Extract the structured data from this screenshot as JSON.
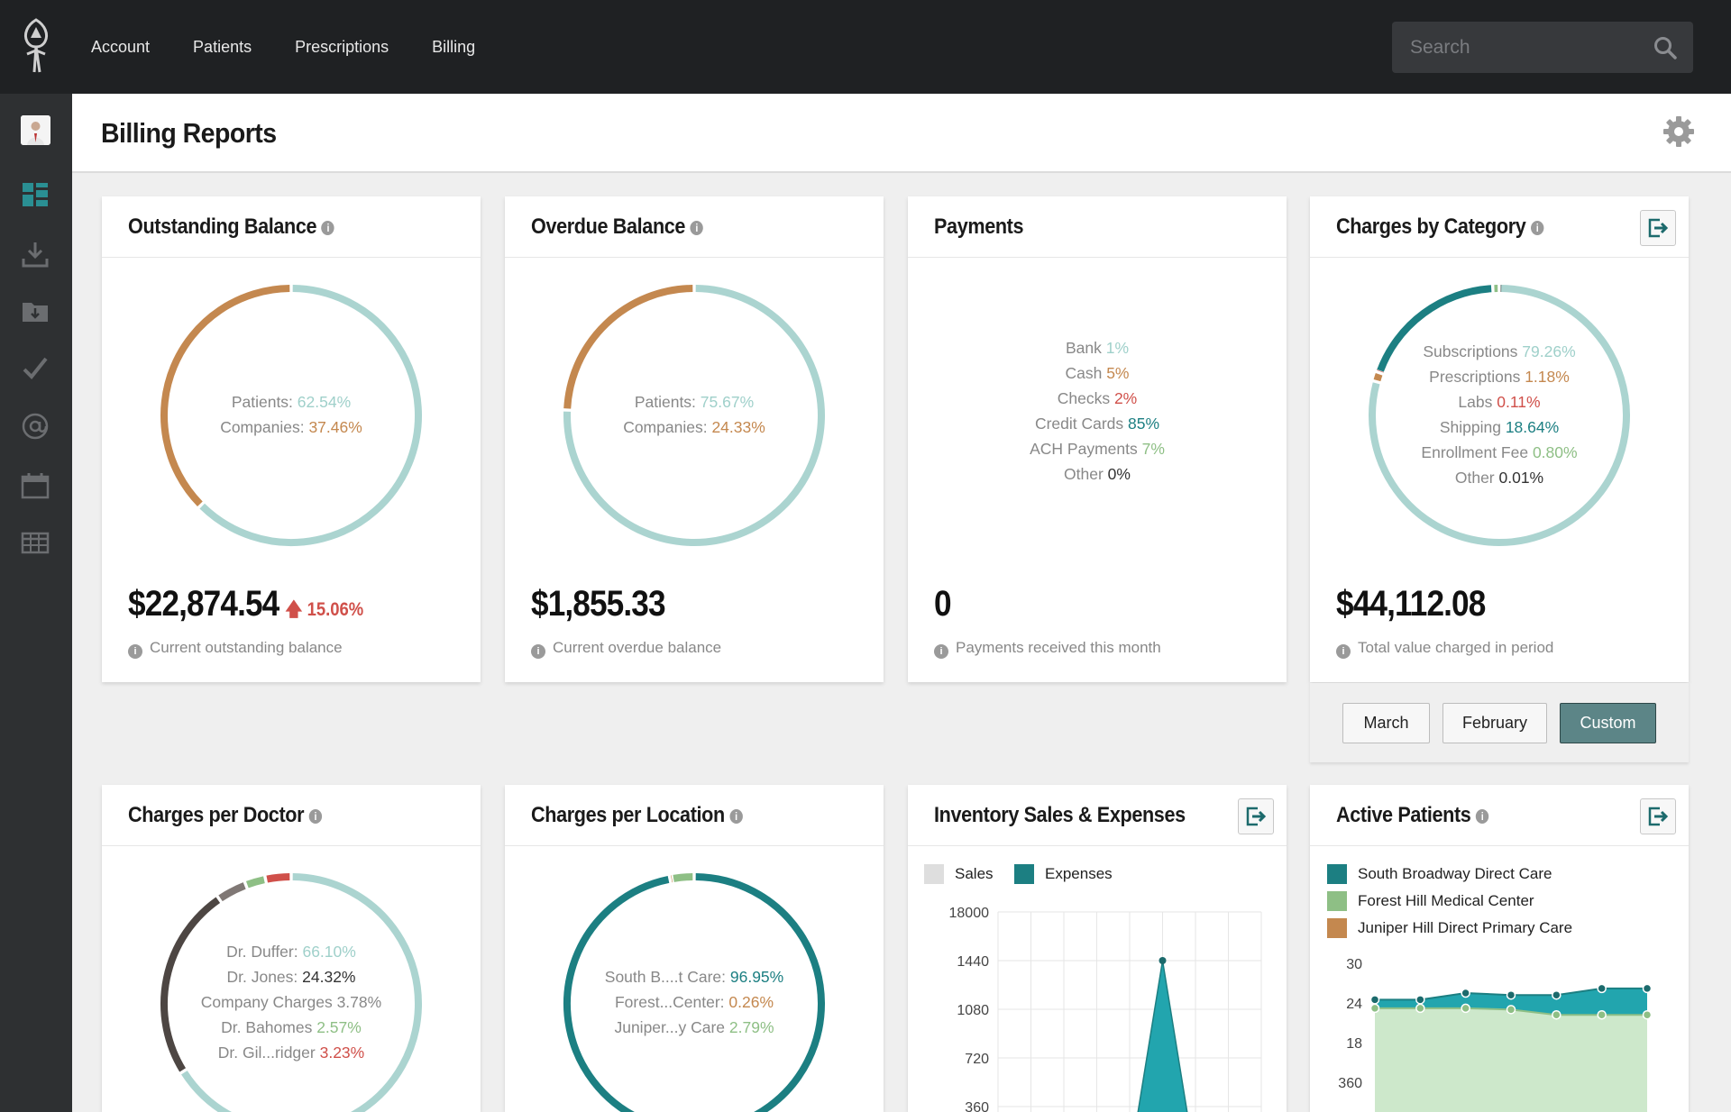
{
  "nav": [
    "Account",
    "Patients",
    "Prescriptions",
    "Billing"
  ],
  "search": {
    "placeholder": "Search"
  },
  "header": {
    "title": "Billing Reports"
  },
  "sidebar": {
    "icons": [
      "avatar",
      "dashboard-icon",
      "download-icon",
      "folder-download-icon",
      "check-icon",
      "at-icon",
      "calendar-icon",
      "table-icon"
    ]
  },
  "colors": {
    "teal": "#1c7f82",
    "light_teal": "#abd4d0",
    "orange": "#c4884f",
    "green": "#8ebf85",
    "red": "#d0504a",
    "dark": "#4d4643",
    "gray": "#807875"
  },
  "cards": {
    "outstanding": {
      "title": "Outstanding Balance",
      "legend": [
        {
          "label": "Patients: ",
          "value": "62.54%",
          "color": "#9fd0ca"
        },
        {
          "label": "Companies: ",
          "value": "37.46%",
          "color": "#c4884f"
        }
      ],
      "value": "$22,874.54",
      "trend": "15.06%",
      "caption": "Current outstanding balance"
    },
    "overdue": {
      "title": "Overdue Balance",
      "legend": [
        {
          "label": "Patients: ",
          "value": "75.67%",
          "color": "#9fd0ca"
        },
        {
          "label": "Companies: ",
          "value": "24.33%",
          "color": "#c4884f"
        }
      ],
      "value": "$1,855.33",
      "caption": "Current overdue balance"
    },
    "payments": {
      "title": "Payments",
      "legend": [
        {
          "label": "Bank ",
          "value": "1%",
          "color": "#9fd0ca"
        },
        {
          "label": "Cash ",
          "value": "5%",
          "color": "#c4884f"
        },
        {
          "label": "Checks ",
          "value": "2%",
          "color": "#d0504a"
        },
        {
          "label": "Credit Cards ",
          "value": "85%",
          "color": "#1c7f82"
        },
        {
          "label": "ACH Payments ",
          "value": "7%",
          "color": "#8ebf85"
        },
        {
          "label": "Other ",
          "value": "0%",
          "color": "#333333"
        }
      ],
      "value": "0",
      "caption": "Payments received this month"
    },
    "category": {
      "title": "Charges by Category",
      "legend": [
        {
          "label": "Subscriptions ",
          "value": "79.26%",
          "color": "#9fd0ca"
        },
        {
          "label": "Prescriptions ",
          "value": "1.18%",
          "color": "#c4884f"
        },
        {
          "label": "Labs ",
          "value": "0.11%",
          "color": "#d0504a"
        },
        {
          "label": "Shipping ",
          "value": "18.64%",
          "color": "#1c7f82"
        },
        {
          "label": "Enrollment Fee ",
          "value": "0.80%",
          "color": "#8ebf85"
        },
        {
          "label": "Other ",
          "value": "0.01%",
          "color": "#333333"
        }
      ],
      "value": "$44,112.08",
      "caption": "Total value charged in period",
      "periods": [
        "March",
        "February",
        "Custom"
      ],
      "active_period": "Custom"
    },
    "doctor": {
      "title": "Charges per Doctor",
      "legend": [
        {
          "label": "Dr. Duffer: ",
          "value": "66.10%",
          "color": "#9fd0ca"
        },
        {
          "label": "Dr. Jones: ",
          "value": "24.32%",
          "color": "#333333"
        },
        {
          "label": "Company Charges ",
          "value": "3.78%",
          "color": "#888888"
        },
        {
          "label": "Dr. Bahomes ",
          "value": "2.57%",
          "color": "#8ebf85"
        },
        {
          "label": "Dr. Gil...ridger ",
          "value": "3.23%",
          "color": "#d0504a"
        }
      ]
    },
    "location": {
      "title": "Charges per Location",
      "legend": [
        {
          "label": "South B....t Care: ",
          "value": "96.95%",
          "color": "#1c7f82"
        },
        {
          "label": "Forest...Center: ",
          "value": "0.26%",
          "color": "#c4884f"
        },
        {
          "label": "Juniper...y Care ",
          "value": "2.79%",
          "color": "#8ebf85"
        }
      ]
    },
    "inventory": {
      "title": "Inventory Sales & Expenses",
      "legend": [
        {
          "name": "Sales",
          "color": "#dedede"
        },
        {
          "name": "Expenses",
          "color": "#1c7f82"
        }
      ]
    },
    "active": {
      "title": "Active Patients",
      "legend": [
        {
          "name": "South Broadway Direct Care",
          "color": "#1c7f82"
        },
        {
          "name": "Forest Hill Medical Center",
          "color": "#8ebf85"
        },
        {
          "name": "Juniper Hill Direct Primary Care",
          "color": "#c4884f"
        }
      ]
    }
  },
  "chart_data": [
    {
      "type": "pie",
      "title": "Outstanding Balance",
      "labels": [
        "Patients",
        "Companies"
      ],
      "values": [
        62.54,
        37.46
      ]
    },
    {
      "type": "pie",
      "title": "Overdue Balance",
      "labels": [
        "Patients",
        "Companies"
      ],
      "values": [
        75.67,
        24.33
      ]
    },
    {
      "type": "pie",
      "title": "Charges by Category",
      "labels": [
        "Subscriptions",
        "Prescriptions",
        "Labs",
        "Shipping",
        "Enrollment Fee",
        "Other"
      ],
      "values": [
        79.26,
        1.18,
        0.11,
        18.64,
        0.8,
        0.01
      ]
    },
    {
      "type": "pie",
      "title": "Charges per Doctor",
      "labels": [
        "Dr. Duffer",
        "Dr. Jones",
        "Company Charges",
        "Dr. Bahomes",
        "Dr. Gil...ridger"
      ],
      "values": [
        66.1,
        24.32,
        3.78,
        2.57,
        3.23
      ]
    },
    {
      "type": "pie",
      "title": "Charges per Location",
      "labels": [
        "South B....t Care",
        "Forest...Center",
        "Juniper...y Care"
      ],
      "values": [
        96.95,
        0.26,
        2.79
      ]
    },
    {
      "type": "area",
      "title": "Inventory Sales & Expenses",
      "y_ticks": [
        "18000",
        "1440",
        "1080",
        "720",
        "360"
      ],
      "series": [
        {
          "name": "Sales",
          "values": [
            0,
            0,
            0,
            0,
            0,
            0,
            0,
            0,
            0
          ]
        },
        {
          "name": "Expenses",
          "values": [
            0,
            0,
            0,
            0,
            0,
            1440,
            0,
            0,
            0
          ]
        }
      ]
    },
    {
      "type": "area",
      "title": "Active Patients",
      "y_ticks": [
        "30",
        "24",
        "18",
        "360"
      ],
      "series": [
        {
          "name": "South Broadway Direct Care",
          "values": [
            24.5,
            24.5,
            25.5,
            25.2,
            25.2,
            26.2,
            26.2
          ]
        },
        {
          "name": "Forest Hill Medical Center",
          "values": [
            23.2,
            23.2,
            23.2,
            23.0,
            22.2,
            22.2,
            22.2
          ]
        }
      ]
    }
  ]
}
